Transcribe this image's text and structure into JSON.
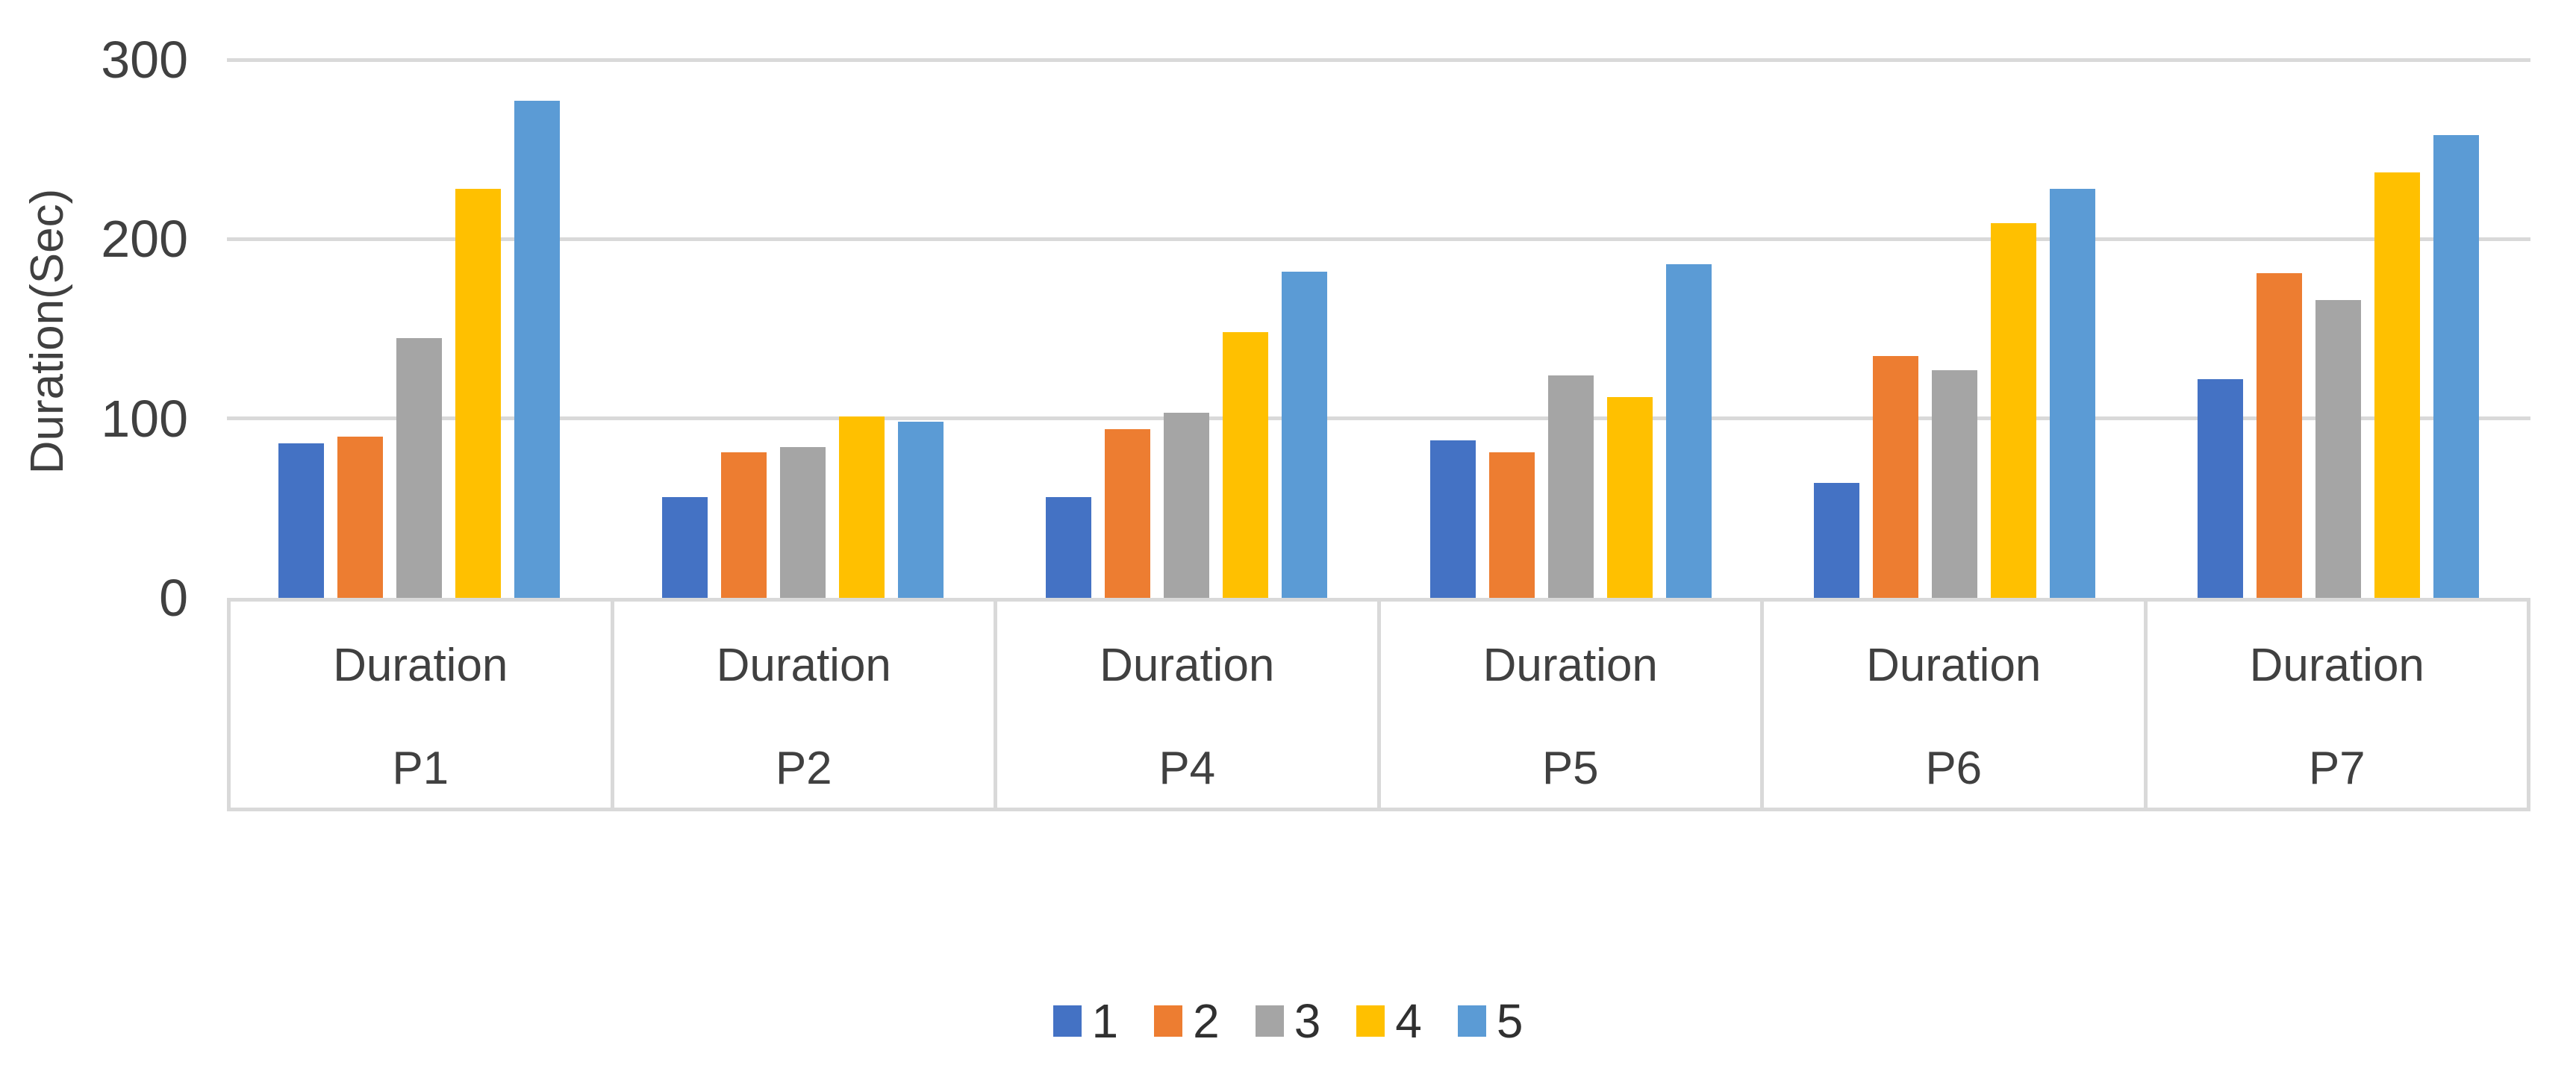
{
  "colors": {
    "gridline": "#D9D9D9",
    "axis_text": "#404040",
    "background": "#FFFFFF"
  },
  "chart_data": {
    "type": "bar",
    "title": "",
    "ylabel": "Duration(Sec)",
    "xlabel": "",
    "ylim": [
      0,
      300
    ],
    "yticks": [
      300,
      200,
      100,
      0
    ],
    "grid": "horizontal-gridlines-at-100-200-300",
    "legend_position": "bottom-center",
    "category_sublabel": "Duration",
    "categories": [
      "P1",
      "P2",
      "P4",
      "P5",
      "P6",
      "P7"
    ],
    "series": [
      {
        "name": "1",
        "color": "#4472C4",
        "values": [
          86,
          56,
          56,
          88,
          64,
          122
        ]
      },
      {
        "name": "2",
        "color": "#ED7D31",
        "values": [
          90,
          81,
          94,
          81,
          135,
          181
        ]
      },
      {
        "name": "3",
        "color": "#A5A5A5",
        "values": [
          145,
          84,
          103,
          124,
          127,
          166
        ]
      },
      {
        "name": "4",
        "color": "#FFC000",
        "values": [
          228,
          101,
          148,
          112,
          209,
          237
        ]
      },
      {
        "name": "5",
        "color": "#5B9BD5",
        "values": [
          277,
          98,
          182,
          186,
          228,
          258
        ]
      }
    ]
  }
}
